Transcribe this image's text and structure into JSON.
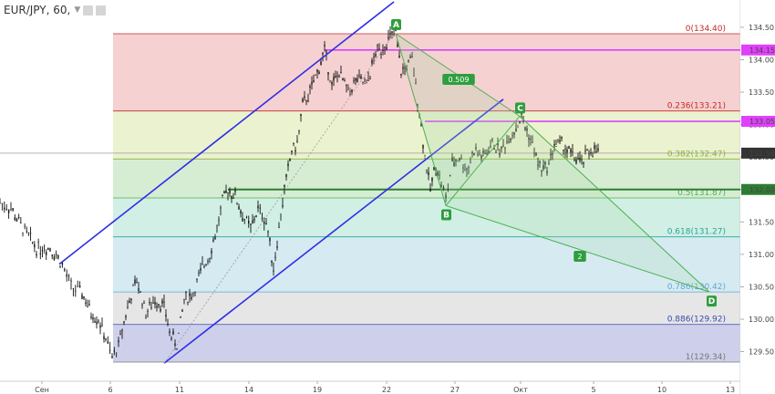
{
  "header": {
    "symbol_label": "EUR/JPY, 60,",
    "settings_icon": "gear-icon",
    "dropdown_icon": "chevron-down-icon"
  },
  "chart_data": {
    "type": "candlestick",
    "title": "EUR/JPY, 60,",
    "ylim": [
      129.2,
      134.8
    ],
    "y_ticks": [
      "134.50",
      "134.00",
      "133.50",
      "133.00",
      "132.50",
      "132.00",
      "131.50",
      "131.00",
      "130.50",
      "130.00",
      "129.50"
    ],
    "x_ticks": [
      "Сен",
      "6",
      "11",
      "14",
      "19",
      "22",
      "27",
      "Окт",
      "5",
      "10",
      "13"
    ],
    "price_path": [
      [
        0,
        131.8
      ],
      [
        12,
        131.7
      ],
      [
        25,
        131.4
      ],
      [
        40,
        131.1
      ],
      [
        55,
        131.1
      ],
      [
        66,
        130.9
      ],
      [
        78,
        130.5
      ],
      [
        90,
        130.4
      ],
      [
        100,
        130.1
      ],
      [
        108,
        130.0
      ],
      [
        116,
        129.7
      ],
      [
        123,
        129.4
      ],
      [
        130,
        129.6
      ],
      [
        140,
        130.2
      ],
      [
        150,
        130.6
      ],
      [
        160,
        130.1
      ],
      [
        170,
        130.3
      ],
      [
        180,
        130.2
      ],
      [
        186,
        129.8
      ],
      [
        194,
        129.6
      ],
      [
        202,
        130.3
      ],
      [
        212,
        130.4
      ],
      [
        222,
        130.8
      ],
      [
        230,
        131.0
      ],
      [
        238,
        131.4
      ],
      [
        244,
        131.8
      ],
      [
        250,
        132.0
      ],
      [
        258,
        131.9
      ],
      [
        266,
        131.6
      ],
      [
        275,
        131.4
      ],
      [
        283,
        131.7
      ],
      [
        292,
        131.5
      ],
      [
        300,
        130.8
      ],
      [
        306,
        131.4
      ],
      [
        312,
        132.0
      ],
      [
        320,
        132.6
      ],
      [
        326,
        132.7
      ],
      [
        332,
        133.3
      ],
      [
        340,
        133.5
      ],
      [
        348,
        133.8
      ],
      [
        356,
        134.15
      ],
      [
        364,
        133.6
      ],
      [
        372,
        133.8
      ],
      [
        382,
        133.5
      ],
      [
        392,
        133.7
      ],
      [
        402,
        133.6
      ],
      [
        412,
        134.1
      ],
      [
        420,
        134.2
      ],
      [
        428,
        134.35
      ],
      [
        434,
        134.4
      ],
      [
        440,
        133.8
      ],
      [
        446,
        133.9
      ],
      [
        452,
        134.0
      ],
      [
        460,
        133.2
      ],
      [
        466,
        132.5
      ],
      [
        472,
        132.0
      ],
      [
        478,
        132.4
      ],
      [
        484,
        132.1
      ],
      [
        489,
        131.85
      ],
      [
        496,
        132.4
      ],
      [
        504,
        132.5
      ],
      [
        512,
        132.3
      ],
      [
        520,
        132.6
      ],
      [
        530,
        132.5
      ],
      [
        540,
        132.7
      ],
      [
        550,
        132.6
      ],
      [
        558,
        132.8
      ],
      [
        566,
        132.95
      ],
      [
        572,
        133.1
      ],
      [
        578,
        132.9
      ],
      [
        584,
        132.7
      ],
      [
        590,
        132.4
      ],
      [
        596,
        132.3
      ],
      [
        602,
        132.4
      ],
      [
        608,
        132.7
      ],
      [
        616,
        132.7
      ],
      [
        622,
        132.6
      ],
      [
        630,
        132.5
      ],
      [
        638,
        132.4
      ],
      [
        646,
        132.6
      ],
      [
        652,
        132.6
      ],
      [
        658,
        132.56
      ]
    ],
    "fib_levels": [
      {
        "ratio": "0",
        "value": 134.4,
        "label": "0(134.40)",
        "color": "#c62828",
        "fill": "#f4c9c9"
      },
      {
        "ratio": "0.236",
        "value": 133.21,
        "label": "0.236(133.21)",
        "color": "#c62828",
        "fill": "#e8f0c7"
      },
      {
        "ratio": "0.382",
        "value": 132.47,
        "label": "0.382(132.47)",
        "color": "#8bb33c",
        "fill": "#cfeacb"
      },
      {
        "ratio": "0.5",
        "value": 131.87,
        "label": "0.5(131.87)",
        "color": "#4caf50",
        "fill": "#c9ecdf"
      },
      {
        "ratio": "0.618",
        "value": 131.27,
        "label": "0.618(131.27)",
        "color": "#26a69a",
        "fill": "#cfe6f0"
      },
      {
        "ratio": "0.786",
        "value": 130.42,
        "label": "0.786(130.42)",
        "color": "#5aa9d6",
        "fill": "#e2e2e2"
      },
      {
        "ratio": "0.886",
        "value": 129.92,
        "label": "0.886(129.92)",
        "color": "#3949ab",
        "fill": "#c5c8e8"
      },
      {
        "ratio": "1",
        "value": 129.34,
        "label": "1(129.34)",
        "color": "#777777",
        "fill": null
      }
    ],
    "horizontal_lines": [
      {
        "value": 134.15,
        "label": "134.15",
        "color": "#e040fb"
      },
      {
        "value": 133.05,
        "label": "133.05",
        "color": "#e040fb"
      },
      {
        "value": 132.0,
        "label": "132.00",
        "color": "#2e7d32"
      }
    ],
    "current_price": {
      "value": 132.56,
      "label": "132.56",
      "color": "#333333"
    },
    "pattern_points": [
      {
        "name": "A",
        "x_bar": 434,
        "value": 134.4
      },
      {
        "name": "B",
        "x_bar": 489,
        "value": 131.75
      },
      {
        "name": "C",
        "x_bar": 570,
        "value": 133.13
      },
      {
        "name": "D",
        "x_bar": 778,
        "value": 130.42
      }
    ],
    "pattern_labels": [
      {
        "text": "0.509",
        "between": [
          "A",
          "C"
        ]
      },
      {
        "text": "2",
        "between": [
          "B",
          "D"
        ]
      }
    ],
    "channel": {
      "upper": [
        [
          65,
          130.85
        ],
        [
          432,
          134.85
        ]
      ],
      "lower": [
        [
          180,
          129.35
        ],
        [
          552,
          133.25
        ]
      ],
      "middle_dotted": [
        [
          180,
          129.35
        ],
        [
          432,
          134.4
        ]
      ]
    }
  }
}
